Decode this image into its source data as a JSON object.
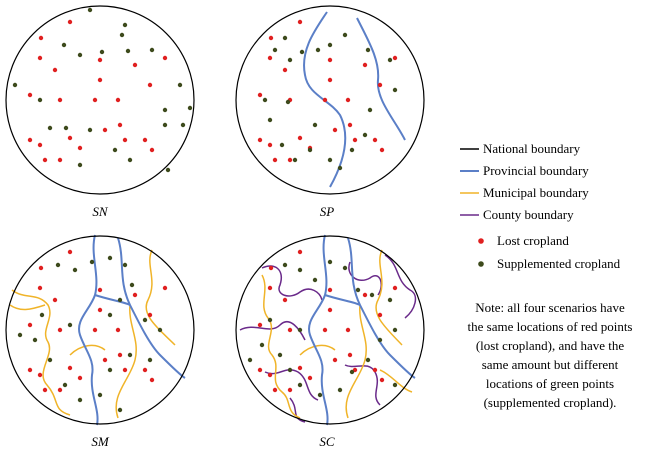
{
  "panels": [
    {
      "id": "sn",
      "caption": "SN"
    },
    {
      "id": "sp",
      "caption": "SP"
    },
    {
      "id": "sm",
      "caption": "SM"
    },
    {
      "id": "sc",
      "caption": "SC"
    }
  ],
  "legend": {
    "national": "National boundary",
    "provincial": "Provincial boundary",
    "municipal": "Municipal boundary",
    "county": "County boundary",
    "lost": "Lost cropland",
    "supplemented": "Supplemented cropland"
  },
  "note": [
    "Note: all four scenarios have",
    "the same locations of red points",
    "(lost cropland), and have the",
    "same amount but different",
    "locations of green points",
    "(supplemented cropland)."
  ],
  "colors": {
    "national": "#000000",
    "provincial": "#5b7fc7",
    "municipal": "#f0b429",
    "county": "#6a2a8a",
    "lost": "#e02020",
    "supplemented": "#3d4a1c"
  }
}
